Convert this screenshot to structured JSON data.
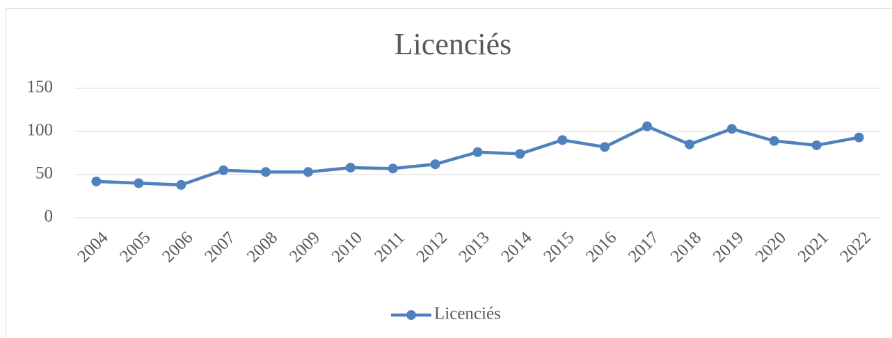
{
  "chart_data": {
    "type": "line",
    "title": "Licenciés",
    "categories": [
      "2004",
      "2005",
      "2006",
      "2007",
      "2008",
      "2009",
      "2010",
      "2011",
      "2012",
      "2013",
      "2014",
      "2015",
      "2016",
      "2017",
      "2018",
      "2019",
      "2020",
      "2021",
      "2022"
    ],
    "series": [
      {
        "name": "Licenciés",
        "color": "#4f81bd",
        "values": [
          42,
          40,
          38,
          55,
          53,
          53,
          58,
          57,
          62,
          76,
          74,
          90,
          82,
          106,
          85,
          103,
          89,
          84,
          93
        ]
      }
    ],
    "ylim": [
      0,
      150
    ],
    "yticks": [
      0,
      50,
      100,
      150
    ],
    "grid": true,
    "legend": "bottom"
  }
}
